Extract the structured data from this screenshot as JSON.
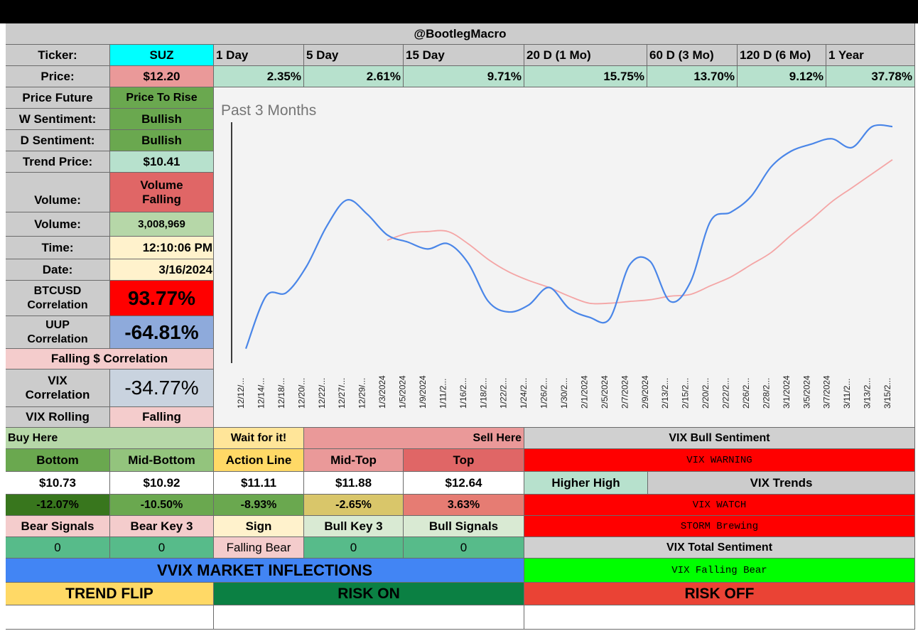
{
  "header": {
    "title": "@BootlegMacro"
  },
  "ticker_row": {
    "label": "Ticker:",
    "ticker": "SUZ",
    "periods": [
      "1 Day",
      "5 Day",
      "15 Day",
      "20 D (1 Mo)",
      "60 D (3 Mo)",
      "120 D (6 Mo)",
      "1 Year"
    ]
  },
  "price_row": {
    "label": "Price:",
    "price": "$12.20",
    "changes": [
      "2.35%",
      "2.61%",
      "9.71%",
      "15.75%",
      "13.70%",
      "9.12%",
      "37.78%"
    ]
  },
  "stats": [
    {
      "label": "Price Future",
      "value": "Price To Rise"
    },
    {
      "label": "W Sentiment:",
      "value": "Bullish"
    },
    {
      "label": "D Sentiment:",
      "value": "Bullish"
    },
    {
      "label": "Trend Price:",
      "value": "$10.41"
    },
    {
      "label": "Volume:",
      "value": "Volume Falling"
    },
    {
      "label": "Volume:",
      "value": "3,008,969"
    },
    {
      "label": "Time:",
      "value": "12:10:06 PM"
    },
    {
      "label": "Date:",
      "value": "3/16/2024"
    },
    {
      "label": "BTCUSD Correlation",
      "value": "93.77%"
    },
    {
      "label": "UUP Correlation",
      "value": "-64.81%"
    },
    {
      "label": "Falling $ Correlation",
      "value": ""
    },
    {
      "label": "VIX Correlation",
      "value": "-34.77%"
    },
    {
      "label": "VIX Rolling",
      "value": "Falling"
    }
  ],
  "chart_data": {
    "type": "line",
    "title": "Past 3 Months",
    "x": [
      "12/12/...",
      "12/14/...",
      "12/18/...",
      "12/20/...",
      "12/22/...",
      "12/27/...",
      "12/29/...",
      "1/3/2024",
      "1/5/2024",
      "1/9/2024",
      "1/11/2...",
      "1/16/2...",
      "1/18/2...",
      "1/22/2...",
      "1/24/2...",
      "1/26/2...",
      "1/30/2...",
      "2/1/2024",
      "2/5/2024",
      "2/7/2024",
      "2/9/2024",
      "2/13/2...",
      "2/15/2...",
      "2/20/2...",
      "2/22/2...",
      "2/26/2...",
      "2/28/2...",
      "3/1/2024",
      "3/5/2024",
      "3/7/2024",
      "3/11/2...",
      "3/13/2...",
      "3/15/2..."
    ],
    "series": [
      {
        "color": "#4a86e8",
        "values": [
          10.35,
          10.65,
          10.67,
          10.82,
          11.05,
          11.2,
          11.12,
          11.0,
          10.96,
          10.92,
          10.95,
          10.84,
          10.62,
          10.56,
          10.6,
          10.7,
          10.58,
          10.53,
          10.52,
          10.83,
          10.85,
          10.62,
          10.73,
          11.08,
          11.13,
          11.22,
          11.39,
          11.48,
          11.52,
          11.55,
          11.5,
          11.62,
          11.62
        ]
      },
      {
        "color": "#f4a5a5",
        "values": [
          null,
          null,
          null,
          null,
          null,
          null,
          null,
          10.97,
          11.01,
          11.02,
          11.02,
          10.95,
          10.86,
          10.79,
          10.74,
          10.7,
          10.65,
          10.61,
          10.61,
          10.62,
          10.63,
          10.65,
          10.66,
          10.71,
          10.76,
          10.83,
          10.9,
          11.0,
          11.09,
          11.19,
          11.27,
          11.35,
          11.43
        ]
      }
    ],
    "ylim": [
      10.3,
      11.6
    ],
    "grid": false,
    "legend": "none"
  },
  "buy_sell": {
    "buy_here": "Buy Here",
    "wait": "Wait for it!",
    "sell_here": "Sell Here",
    "levels": [
      {
        "name": "Bottom",
        "price": "$10.73",
        "pct": "-12.07%"
      },
      {
        "name": "Mid-Bottom",
        "price": "$10.92",
        "pct": "-10.50%"
      },
      {
        "name": "Action Line",
        "price": "$11.11",
        "pct": "-8.93%"
      },
      {
        "name": "Mid-Top",
        "price": "$11.88",
        "pct": "-2.65%"
      },
      {
        "name": "Top",
        "price": "$12.64",
        "pct": "3.63%"
      }
    ],
    "signal_headers": [
      "Bear Signals",
      "Bear Key 3",
      "Sign",
      "Bull Key 3",
      "Bull Signals"
    ],
    "signal_values": [
      "0",
      "0",
      "Falling Bear",
      "0",
      "0"
    ]
  },
  "vix_panel": {
    "bull_sentiment": "VIX Bull Sentiment",
    "warning": "VIX WARNING",
    "higher_high": "Higher High",
    "trends": "VIX Trends",
    "watch": "VIX WATCH",
    "storm": "STORM Brewing",
    "total": "VIX Total Sentiment",
    "falling_bear": "VIX Falling Bear"
  },
  "inflections": {
    "title": "VVIX MARKET INFLECTIONS",
    "trend_flip": "TREND FLIP",
    "risk_on": "RISK ON",
    "risk_off": "RISK OFF"
  },
  "colors": {
    "header_gray": "#cccccc",
    "ticker_cyan": "#00ffff",
    "price_pink": "#ea9999",
    "mint": "#b7e1cd",
    "green": "#6aa84f",
    "volume_red": "#e06666",
    "light_green": "#b6d7a8",
    "cream": "#fff2cc",
    "pale_pink": "#f4cccc",
    "red": "#ff0000",
    "uup_blue": "#8eaadb",
    "vix_gray": "#c9d3df",
    "dark_green": "#38761d",
    "olive": "#93c47d",
    "mustard": "#d9c66a",
    "salmon": "#e67c73",
    "sea_green": "#57bb8a",
    "blue": "#4285f4",
    "lime": "#00ff00",
    "gold": "#ffd966",
    "forest": "#0b8043",
    "tomato": "#ea4335"
  }
}
